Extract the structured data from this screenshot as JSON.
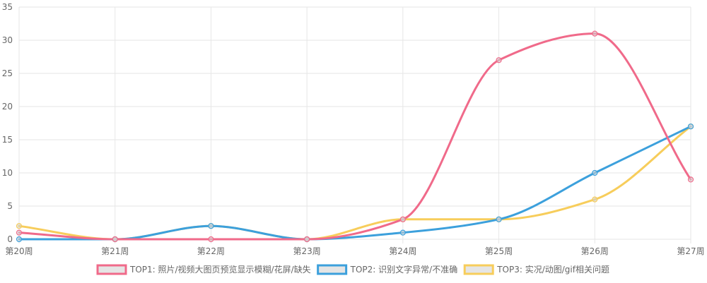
{
  "chart_data": {
    "type": "line",
    "categories": [
      "第20周",
      "第21周",
      "第22周",
      "第23周",
      "第24周",
      "第25周",
      "第26周",
      "第27周"
    ],
    "series": [
      {
        "name": "TOP1: 照片/视频大图页预览显示模糊/花屏/缺失",
        "values": [
          1,
          0,
          0,
          0,
          3,
          27,
          31,
          9
        ],
        "color": "#f06a8a"
      },
      {
        "name": "TOP2: 识别文字异常/不准确",
        "values": [
          0,
          0,
          2,
          0,
          1,
          3,
          10,
          17
        ],
        "color": "#3ca0dc"
      },
      {
        "name": "TOP3: 实况/动图/gif相关问题",
        "values": [
          2,
          0,
          2,
          0,
          3,
          3,
          6,
          17
        ],
        "color": "#f7cd5b"
      }
    ],
    "ylim": [
      0,
      35
    ],
    "yticks": [
      0,
      5,
      10,
      15,
      20,
      25,
      30,
      35
    ],
    "grid": true,
    "legend_position": "bottom",
    "smooth": true,
    "title": "",
    "xlabel": "",
    "ylabel": ""
  }
}
